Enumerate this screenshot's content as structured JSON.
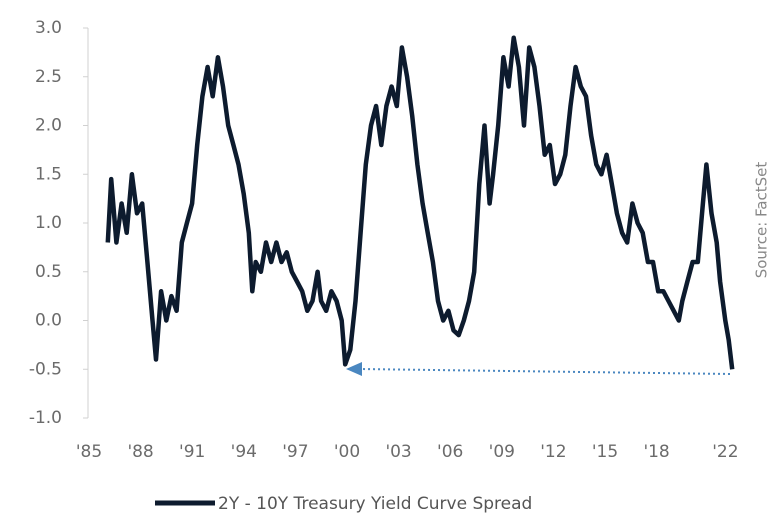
{
  "chart_data": {
    "type": "line",
    "source": "Source: FactSet",
    "x": [
      1986.5,
      1986.7,
      1987.0,
      1987.3,
      1987.6,
      1987.9,
      1988.2,
      1988.5,
      1988.8,
      1989.1,
      1989.3,
      1989.6,
      1989.9,
      1990.2,
      1990.5,
      1990.8,
      1991.1,
      1991.4,
      1991.7,
      1992.0,
      1992.3,
      1992.6,
      1992.9,
      1993.2,
      1993.5,
      1993.8,
      1994.1,
      1994.4,
      1994.7,
      1994.9,
      1995.1,
      1995.4,
      1995.7,
      1996.0,
      1996.3,
      1996.6,
      1996.9,
      1997.2,
      1997.5,
      1997.8,
      1998.1,
      1998.4,
      1998.7,
      1998.9,
      1999.2,
      1999.5,
      1999.8,
      2000.1,
      2000.3,
      2000.6,
      2000.9,
      2001.2,
      2001.5,
      2001.8,
      2002.1,
      2002.4,
      2002.7,
      2003.0,
      2003.3,
      2003.6,
      2003.9,
      2004.2,
      2004.5,
      2004.8,
      2005.1,
      2005.4,
      2005.7,
      2006.0,
      2006.3,
      2006.6,
      2006.9,
      2007.2,
      2007.5,
      2007.8,
      2008.1,
      2008.4,
      2008.7,
      2008.9,
      2009.2,
      2009.5,
      2009.8,
      2010.1,
      2010.4,
      2010.7,
      2011.0,
      2011.3,
      2011.6,
      2011.9,
      2012.2,
      2012.5,
      2012.8,
      2013.1,
      2013.4,
      2013.7,
      2014.0,
      2014.3,
      2014.6,
      2014.9,
      2015.2,
      2015.5,
      2015.8,
      2016.1,
      2016.4,
      2016.7,
      2017.0,
      2017.3,
      2017.6,
      2017.9,
      2018.2,
      2018.5,
      2018.8,
      2019.1,
      2019.4,
      2019.7,
      2019.9,
      2020.2,
      2020.5,
      2020.8,
      2021.1,
      2021.3,
      2021.6,
      2021.9,
      2022.1,
      2022.4,
      2022.6,
      2022.8
    ],
    "series": [
      {
        "name": "2Y - 10Y Treasury Yield Curve Spread",
        "color": "#0d1b2e",
        "values": [
          0.8,
          1.45,
          0.8,
          1.2,
          0.9,
          1.5,
          1.1,
          1.2,
          0.6,
          0.0,
          -0.4,
          0.3,
          0.0,
          0.25,
          0.1,
          0.8,
          1.0,
          1.2,
          1.8,
          2.3,
          2.6,
          2.3,
          2.7,
          2.4,
          2.0,
          1.8,
          1.6,
          1.3,
          0.9,
          0.3,
          0.6,
          0.5,
          0.8,
          0.6,
          0.8,
          0.6,
          0.7,
          0.5,
          0.4,
          0.3,
          0.1,
          0.2,
          0.5,
          0.2,
          0.1,
          0.3,
          0.2,
          0.0,
          -0.45,
          -0.3,
          0.2,
          0.9,
          1.6,
          2.0,
          2.2,
          1.8,
          2.2,
          2.4,
          2.2,
          2.8,
          2.5,
          2.1,
          1.6,
          1.2,
          0.9,
          0.6,
          0.2,
          0.0,
          0.1,
          -0.1,
          -0.15,
          0.0,
          0.2,
          0.5,
          1.4,
          2.0,
          1.2,
          1.5,
          2.0,
          2.7,
          2.4,
          2.9,
          2.6,
          2.0,
          2.8,
          2.6,
          2.2,
          1.7,
          1.8,
          1.4,
          1.5,
          1.7,
          2.2,
          2.6,
          2.4,
          2.3,
          1.9,
          1.6,
          1.5,
          1.7,
          1.4,
          1.1,
          0.9,
          0.8,
          1.2,
          1.0,
          0.9,
          0.6,
          0.6,
          0.3,
          0.3,
          0.2,
          0.1,
          0.0,
          0.2,
          0.4,
          0.6,
          0.6,
          1.2,
          1.6,
          1.1,
          0.8,
          0.4,
          0.0,
          -0.2,
          -0.5
        ]
      }
    ],
    "xlim": [
      1985,
      2024
    ],
    "xticks": [
      {
        "value": 1985,
        "label": "'85"
      },
      {
        "value": 1988,
        "label": "'88"
      },
      {
        "value": 1991,
        "label": "'91"
      },
      {
        "value": 1994,
        "label": "'94"
      },
      {
        "value": 1997,
        "label": "'97"
      },
      {
        "value": 2000,
        "label": "'00"
      },
      {
        "value": 2003,
        "label": "'03"
      },
      {
        "value": 2006,
        "label": "'06"
      },
      {
        "value": 2009,
        "label": "'09"
      },
      {
        "value": 2012,
        "label": "'12"
      },
      {
        "value": 2015,
        "label": "'15"
      },
      {
        "value": 2018,
        "label": "'18"
      },
      {
        "value": 2022,
        "label": "'22"
      }
    ],
    "ylim": [
      -1.0,
      3.0
    ],
    "yticks": [
      {
        "value": 3.0,
        "label": "3.0"
      },
      {
        "value": 2.5,
        "label": "2.5"
      },
      {
        "value": 2.0,
        "label": "2.0"
      },
      {
        "value": 1.5,
        "label": "1.5"
      },
      {
        "value": 1.0,
        "label": "1.0"
      },
      {
        "value": 0.5,
        "label": "0.5"
      },
      {
        "value": 0.0,
        "label": "0.0"
      },
      {
        "value": -0.5,
        "label": "-0.5"
      },
      {
        "value": -1.0,
        "label": "-1.0"
      }
    ]
  }
}
